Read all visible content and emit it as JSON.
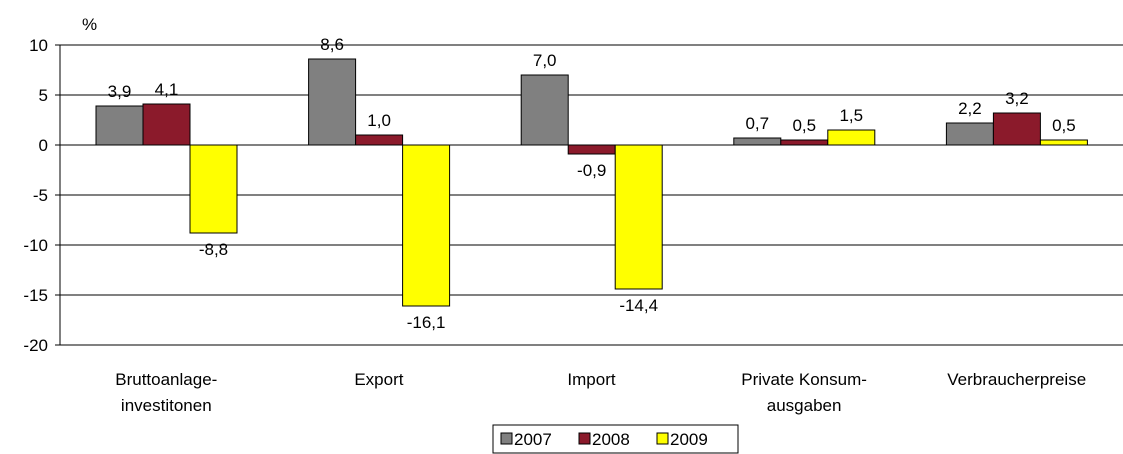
{
  "chart_data": {
    "type": "bar",
    "unit_label": "%",
    "categories": [
      [
        "Bruttoanlage-",
        "investitonen"
      ],
      [
        "Export"
      ],
      [
        "Import"
      ],
      [
        "Private Konsum-",
        "ausgaben"
      ],
      [
        "Verbraucherpreise"
      ]
    ],
    "series": [
      {
        "name": "2007",
        "color": "#808080",
        "values": [
          3.9,
          8.6,
          7.0,
          0.7,
          2.2
        ],
        "labels": [
          "3,9",
          "8,6",
          "7,0",
          "0,7",
          "2,2"
        ]
      },
      {
        "name": "2008",
        "color": "#8B1A2B",
        "values": [
          4.1,
          1.0,
          -0.9,
          0.5,
          3.2
        ],
        "labels": [
          "4,1",
          "1,0",
          "-0,9",
          "0,5",
          "3,2"
        ]
      },
      {
        "name": "2009",
        "color": "#FFFF00",
        "values": [
          -8.8,
          -16.1,
          -14.4,
          1.5,
          0.5
        ],
        "labels": [
          "-8,8",
          "-16,1",
          "-14,4",
          "1,5",
          "0,5"
        ]
      }
    ],
    "ylim": [
      -20,
      10
    ],
    "yticks": [
      10,
      5,
      0,
      -5,
      -10,
      -15,
      -20
    ],
    "ytick_labels": [
      "10",
      "5",
      "0",
      "-5",
      "-10",
      "-15",
      "-20"
    ],
    "grid": true,
    "legend_position": "bottom-center"
  }
}
